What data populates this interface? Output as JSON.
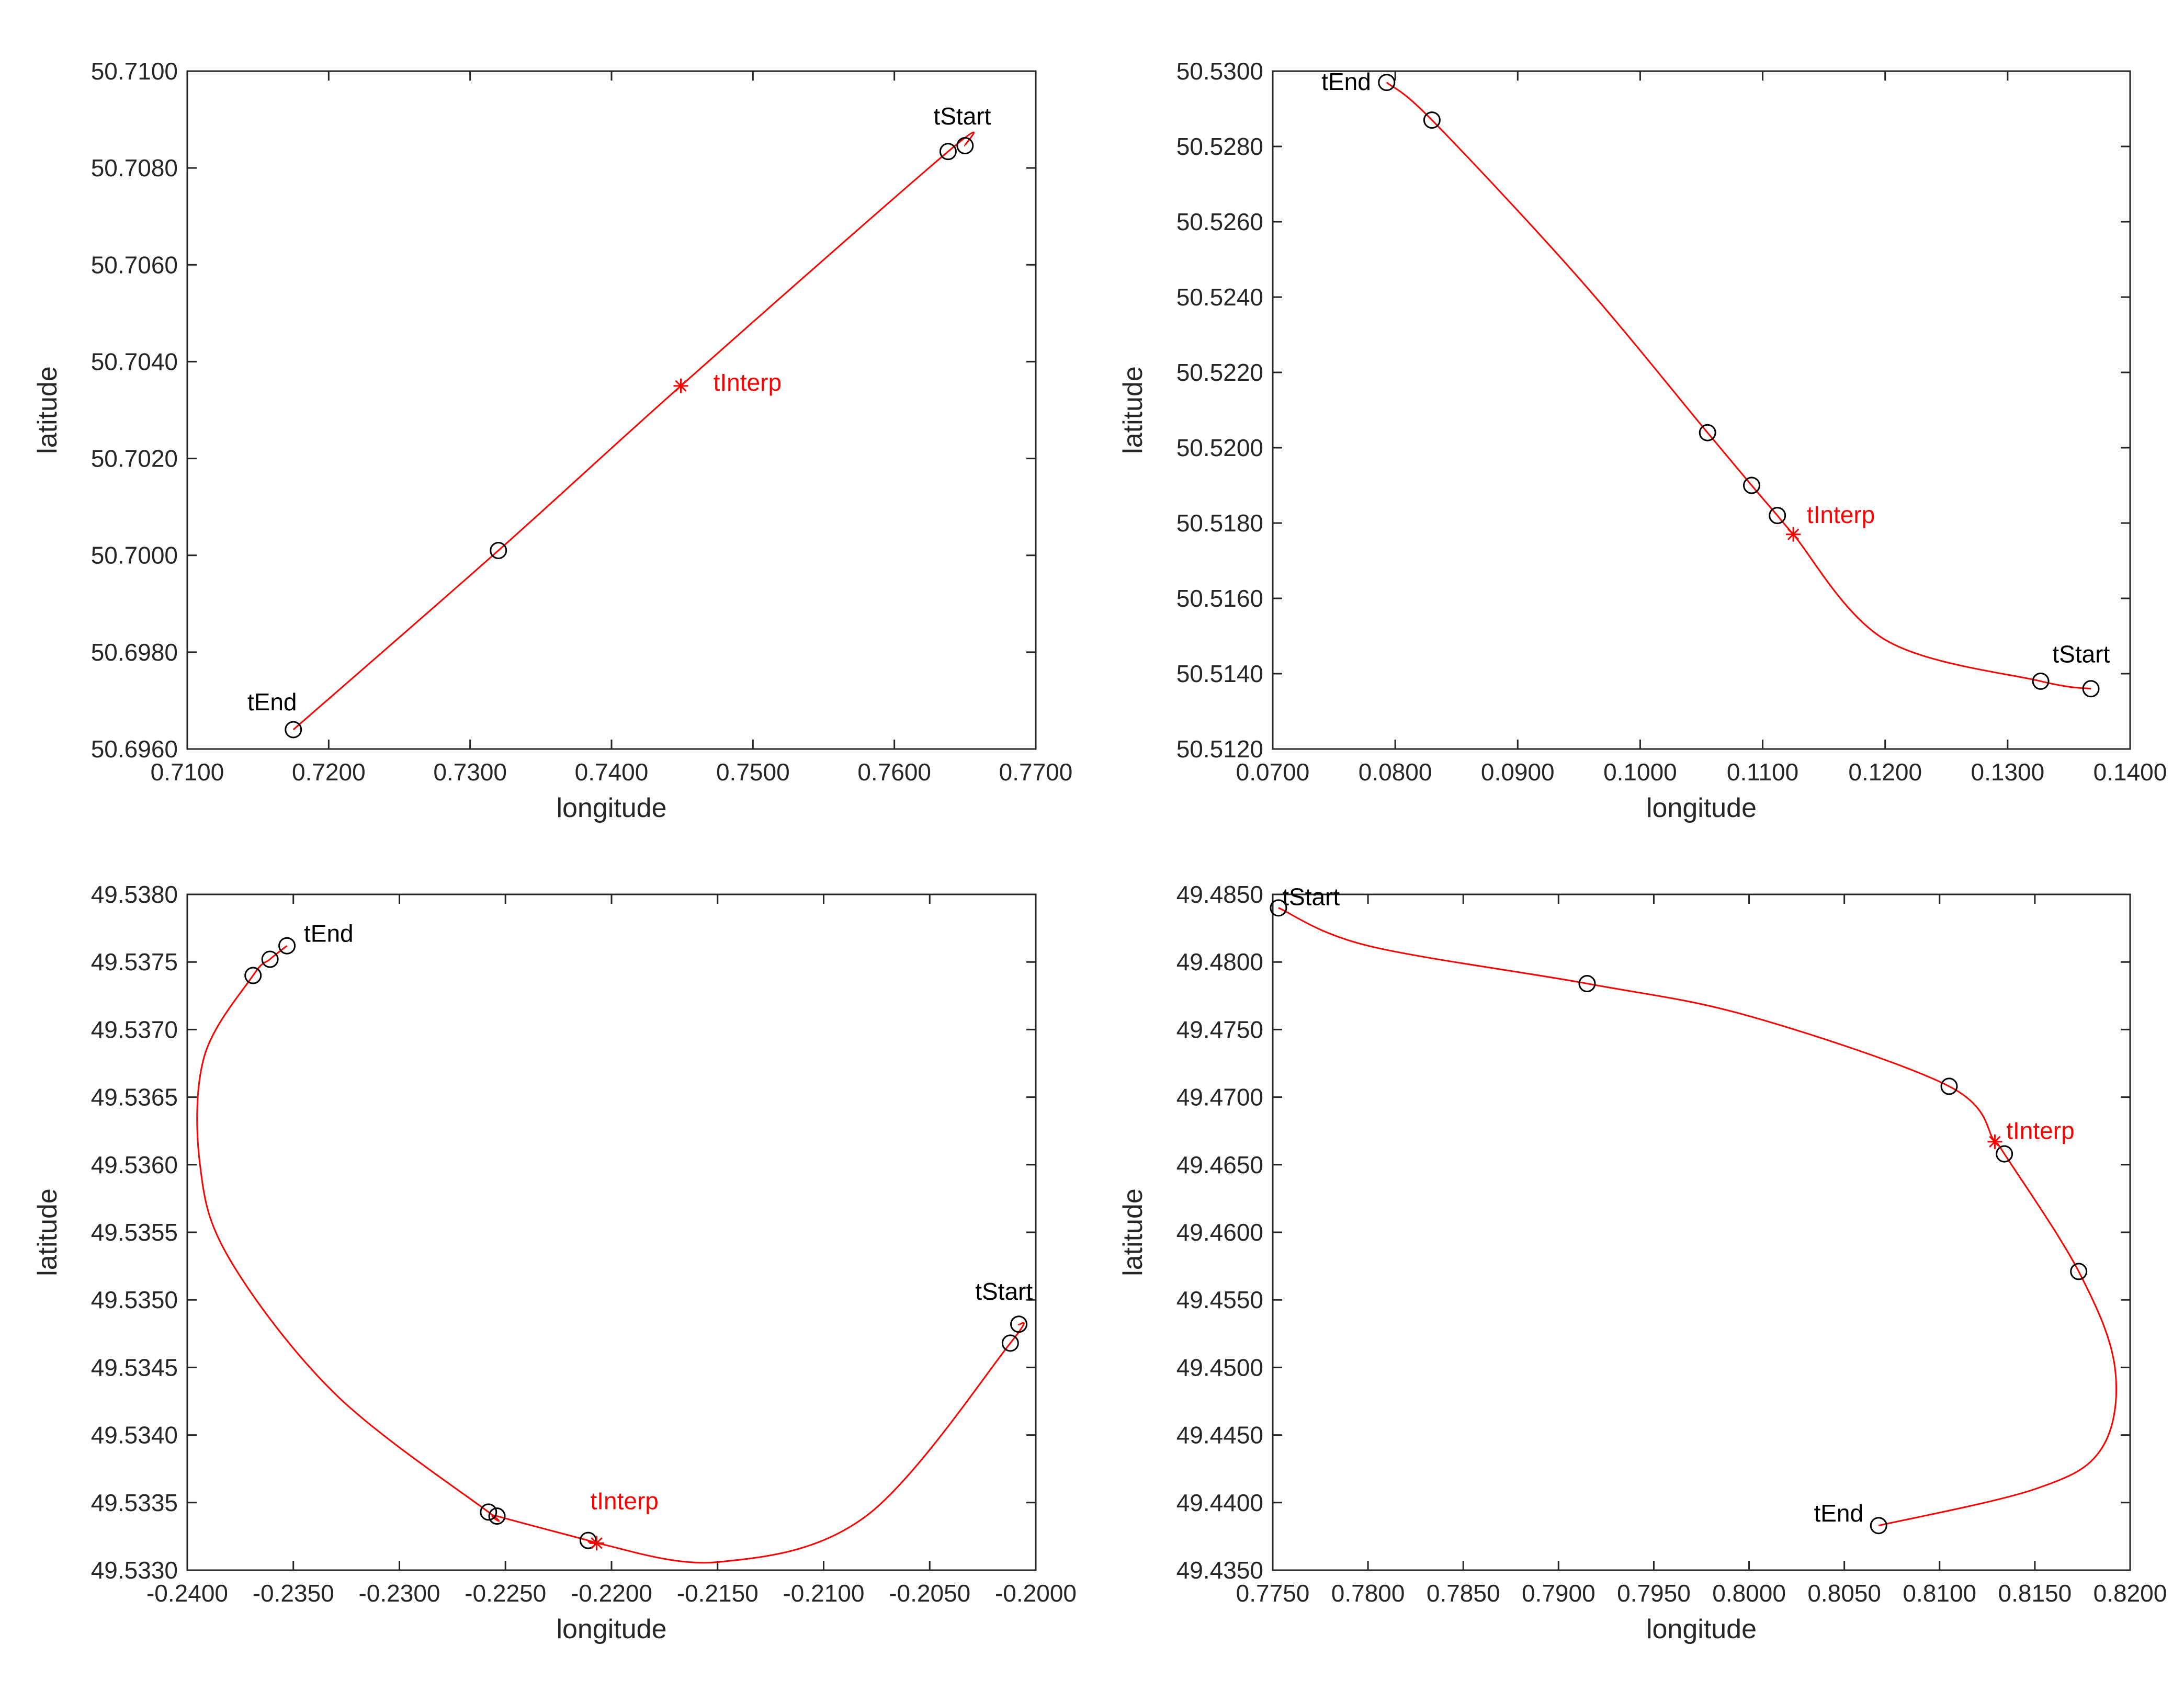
{
  "colors": {
    "axis": "#262626",
    "curve": "#ff0000",
    "marker": "#000000",
    "interp": "#ff0000"
  },
  "chart_data": [
    {
      "type": "line",
      "xlabel": "longitude",
      "ylabel": "latitude",
      "xlim": [
        0.71,
        0.77
      ],
      "ylim": [
        50.696,
        50.71
      ],
      "xticks": [
        0.71,
        0.72,
        0.73,
        0.74,
        0.75,
        0.76,
        0.77
      ],
      "yticks": [
        50.696,
        50.698,
        50.7,
        50.702,
        50.704,
        50.706,
        50.708,
        50.71
      ],
      "xtick_labels": [
        "0.7100",
        "0.7200",
        "0.7300",
        "0.7400",
        "0.7500",
        "0.7600",
        "0.7700"
      ],
      "ytick_labels": [
        "50.6960",
        "50.6980",
        "50.7000",
        "50.7020",
        "50.7040",
        "50.7060",
        "50.7080",
        "50.7100"
      ],
      "curve": {
        "x": [
          0.7175,
          0.732,
          0.7449,
          0.7638,
          0.765
        ],
        "y": [
          50.6964,
          50.7001,
          50.7035,
          50.70834,
          50.70846
        ]
      },
      "markers": {
        "x": [
          0.7175,
          0.732,
          0.7638,
          0.765
        ],
        "y": [
          50.6964,
          50.7001,
          50.70834,
          50.70846
        ]
      },
      "interp_point": {
        "x": 0.7449,
        "y": 50.7035
      },
      "annotations": [
        {
          "text": "tStart",
          "x": 0.7648,
          "y": 50.7089,
          "color": "#000000",
          "anchor": "middle"
        },
        {
          "text": "tEnd",
          "x": 0.716,
          "y": 50.6968,
          "color": "#000000",
          "anchor": "middle"
        },
        {
          "text": "tInterp",
          "x": 0.7472,
          "y": 50.7034,
          "color": "#ff0000",
          "anchor": "start"
        }
      ]
    },
    {
      "type": "line",
      "xlabel": "longitude",
      "ylabel": "latitude",
      "xlim": [
        0.07,
        0.14
      ],
      "ylim": [
        50.512,
        50.53
      ],
      "xticks": [
        0.07,
        0.08,
        0.09,
        0.1,
        0.11,
        0.12,
        0.13,
        0.14
      ],
      "yticks": [
        50.512,
        50.514,
        50.516,
        50.518,
        50.52,
        50.522,
        50.524,
        50.526,
        50.528,
        50.53
      ],
      "xtick_labels": [
        "0.0700",
        "0.0800",
        "0.0900",
        "0.1000",
        "0.1100",
        "0.1200",
        "0.1300",
        "0.1400"
      ],
      "ytick_labels": [
        "50.5120",
        "50.5140",
        "50.5160",
        "50.5180",
        "50.5200",
        "50.5220",
        "50.5240",
        "50.5260",
        "50.5280",
        "50.5300"
      ],
      "curve": {
        "x": [
          0.0793,
          0.083,
          0.095,
          0.1055,
          0.1091,
          0.1112,
          0.1125,
          0.12,
          0.1327,
          0.1368
        ],
        "y": [
          50.5297,
          50.5287,
          50.5245,
          50.5204,
          50.519,
          50.5182,
          50.5177,
          50.5149,
          50.5138,
          50.5136
        ]
      },
      "markers": {
        "x": [
          0.0793,
          0.083,
          0.1055,
          0.1091,
          0.1112,
          0.1327,
          0.1368
        ],
        "y": [
          50.5297,
          50.5287,
          50.5204,
          50.519,
          50.5182,
          50.5138,
          50.5136
        ]
      },
      "interp_point": {
        "x": 0.1125,
        "y": 50.5177
      },
      "annotations": [
        {
          "text": "tStart",
          "x": 0.136,
          "y": 50.5143,
          "color": "#000000",
          "anchor": "middle"
        },
        {
          "text": "tEnd",
          "x": 0.076,
          "y": 50.5295,
          "color": "#000000",
          "anchor": "middle"
        },
        {
          "text": "tInterp",
          "x": 0.1136,
          "y": 50.518,
          "color": "#ff0000",
          "anchor": "start"
        }
      ]
    },
    {
      "type": "line",
      "xlabel": "longitude",
      "ylabel": "latitude",
      "xlim": [
        -0.24,
        -0.2
      ],
      "ylim": [
        49.533,
        49.538
      ],
      "xticks": [
        -0.24,
        -0.235,
        -0.23,
        -0.225,
        -0.22,
        -0.215,
        -0.21,
        -0.205,
        -0.2
      ],
      "yticks": [
        49.533,
        49.5335,
        49.534,
        49.5345,
        49.535,
        49.5355,
        49.536,
        49.5365,
        49.537,
        49.5375,
        49.538
      ],
      "xtick_labels": [
        "-0.2400",
        "-0.2350",
        "-0.2300",
        "-0.2250",
        "-0.2200",
        "-0.2150",
        "-0.2100",
        "-0.2050",
        "-0.2000"
      ],
      "ytick_labels": [
        "49.5330",
        "49.5335",
        "49.5340",
        "49.5345",
        "49.5350",
        "49.5355",
        "49.5360",
        "49.5365",
        "49.5370",
        "49.5375",
        "49.5380"
      ],
      "curve": {
        "x": [
          -0.2353,
          -0.2361,
          -0.2369,
          -0.2392,
          -0.2394,
          -0.238,
          -0.233,
          -0.2258,
          -0.2254,
          -0.2211,
          -0.2207,
          -0.215,
          -0.208,
          -0.2012,
          -0.2008
        ],
        "y": [
          49.53762,
          49.53752,
          49.5374,
          49.5368,
          49.536,
          49.5353,
          49.5343,
          49.53343,
          49.5334,
          49.53322,
          49.5332,
          49.53306,
          49.5334,
          49.53468,
          49.53482
        ]
      },
      "markers": {
        "x": [
          -0.2353,
          -0.2361,
          -0.2369,
          -0.2258,
          -0.2254,
          -0.2211,
          -0.2012,
          -0.2008
        ],
        "y": [
          49.53762,
          49.53752,
          49.5374,
          49.53343,
          49.5334,
          49.53322,
          49.53468,
          49.53482
        ]
      },
      "interp_point": {
        "x": -0.2207,
        "y": 49.5332
      },
      "annotations": [
        {
          "text": "tStart",
          "x": -0.2015,
          "y": 49.535,
          "color": "#000000",
          "anchor": "middle"
        },
        {
          "text": "tEnd",
          "x": -0.2345,
          "y": 49.53765,
          "color": "#000000",
          "anchor": "start"
        },
        {
          "text": "tInterp",
          "x": -0.221,
          "y": 49.53345,
          "color": "#ff0000",
          "anchor": "start"
        }
      ]
    },
    {
      "type": "line",
      "xlabel": "longitude",
      "ylabel": "latitude",
      "xlim": [
        0.775,
        0.82
      ],
      "ylim": [
        49.435,
        49.485
      ],
      "xticks": [
        0.775,
        0.78,
        0.785,
        0.79,
        0.795,
        0.8,
        0.805,
        0.81,
        0.815,
        0.82
      ],
      "yticks": [
        49.435,
        49.44,
        49.445,
        49.45,
        49.455,
        49.46,
        49.465,
        49.47,
        49.475,
        49.48,
        49.485
      ],
      "xtick_labels": [
        "0.7750",
        "0.7800",
        "0.7850",
        "0.7900",
        "0.7950",
        "0.8000",
        "0.8050",
        "0.8100",
        "0.8150",
        "0.8200"
      ],
      "ytick_labels": [
        "49.4350",
        "49.4400",
        "49.4450",
        "49.4500",
        "49.4550",
        "49.4600",
        "49.4650",
        "49.4700",
        "49.4750",
        "49.4800",
        "49.4850"
      ],
      "curve": {
        "x": [
          0.7753,
          0.78,
          0.7915,
          0.8,
          0.8105,
          0.8129,
          0.8134,
          0.8173,
          0.8192,
          0.8185,
          0.815,
          0.8068
        ],
        "y": [
          49.484,
          49.4812,
          49.4784,
          49.476,
          49.4708,
          49.4667,
          49.4658,
          49.4571,
          49.45,
          49.444,
          49.441,
          49.4383
        ]
      },
      "markers": {
        "x": [
          0.7753,
          0.7915,
          0.8105,
          0.8134,
          0.8173,
          0.8068
        ],
        "y": [
          49.484,
          49.4784,
          49.4708,
          49.4658,
          49.4571,
          49.4383
        ]
      },
      "interp_point": {
        "x": 0.8129,
        "y": 49.4667
      },
      "annotations": [
        {
          "text": "tStart",
          "x": 0.7755,
          "y": 49.4842,
          "color": "#000000",
          "anchor": "start"
        },
        {
          "text": "tEnd",
          "x": 0.806,
          "y": 49.4386,
          "color": "#000000",
          "anchor": "end"
        },
        {
          "text": "tInterp",
          "x": 0.8135,
          "y": 49.4669,
          "color": "#ff0000",
          "anchor": "start"
        }
      ]
    }
  ]
}
